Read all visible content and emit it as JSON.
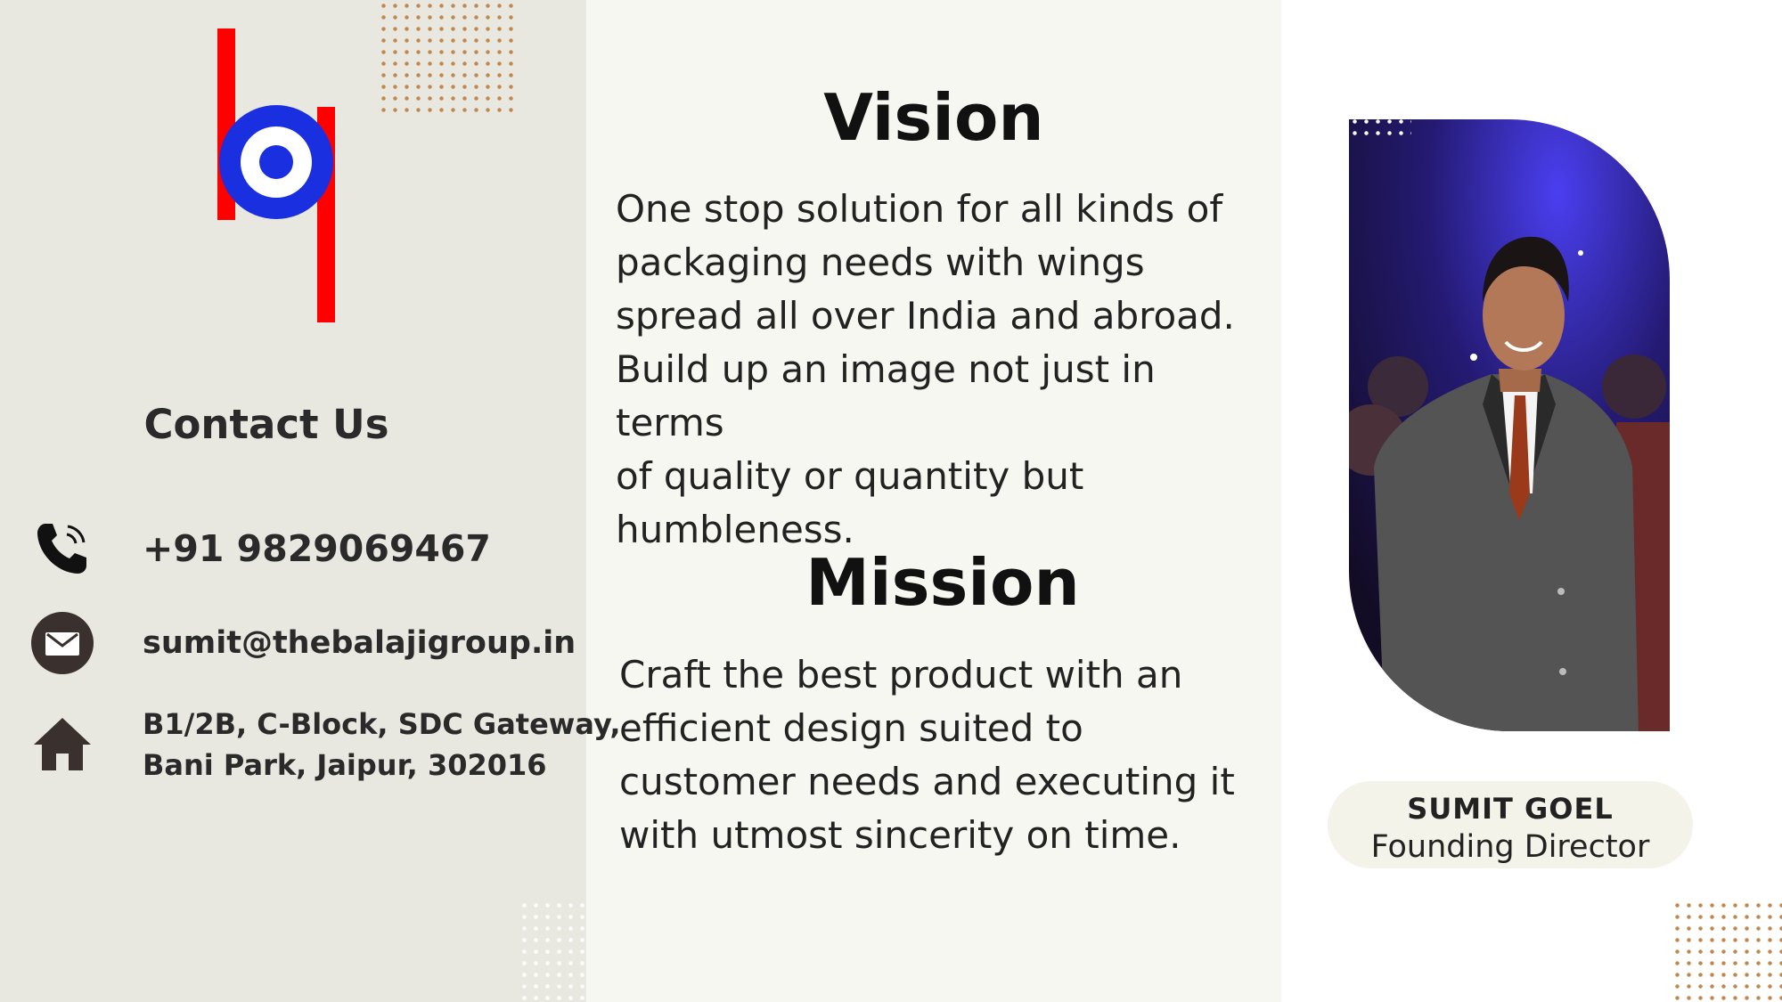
{
  "contact": {
    "title": "Contact Us",
    "phone": "+91 9829069467",
    "email": "sumit@thebalajigroup.in",
    "address_line1": "B1/2B, C-Block, SDC Gateway,",
    "address_line2": "Bani Park, Jaipur, 302016",
    "icons": [
      "phone-icon",
      "email-icon",
      "home-icon"
    ]
  },
  "vision": {
    "heading": "Vision",
    "text": "One stop solution for all kinds of\npackaging needs with wings\nspread all over India and abroad.\nBuild up an image not just in terms\nof quality or quantity but\nhumbleness."
  },
  "mission": {
    "heading": "Mission",
    "text": "Craft the best product with an\nefficient design suited to\ncustomer needs and executing it\nwith utmost sincerity  on time."
  },
  "profile": {
    "name": "SUMIT GOEL",
    "role": "Founding Director"
  },
  "colors": {
    "logo_red": "#ff0000",
    "logo_blue": "#1a2fe0",
    "left_bg": "#e9e8e0",
    "middle_bg": "#f7f7f1",
    "dots": "#c0874e"
  }
}
